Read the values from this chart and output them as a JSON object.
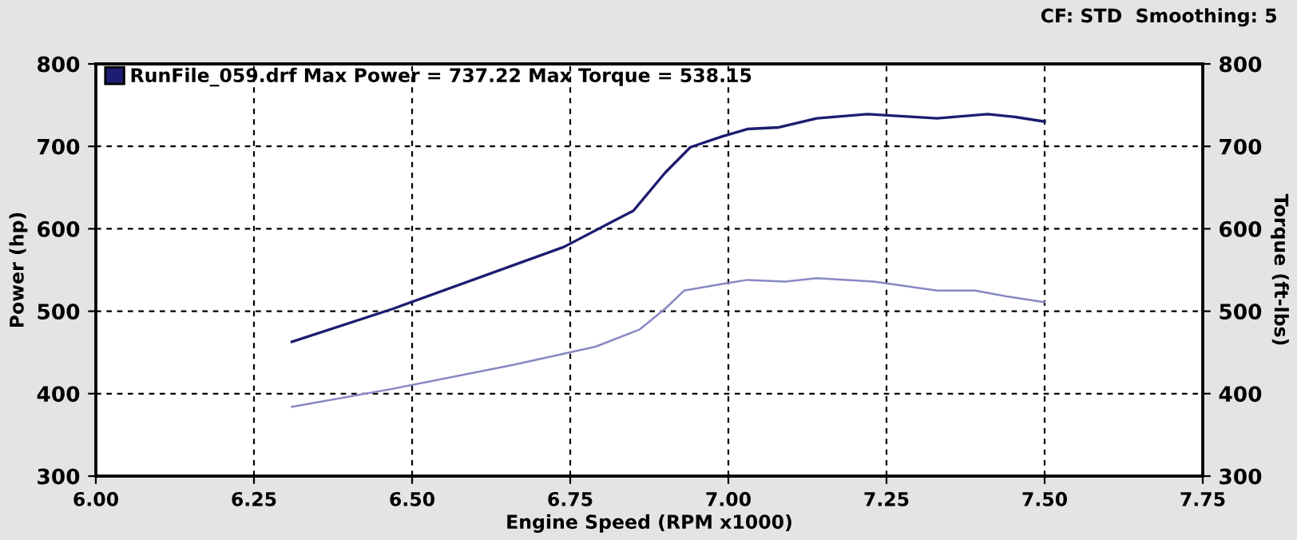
{
  "chart_data": {
    "type": "line",
    "xlabel": "Engine Speed (RPM x1000)",
    "ylabel": "Power (hp)",
    "y2label": "Torque (ft-lbs)",
    "annotations": [
      "CF: STD  Smoothing: 5"
    ],
    "series": [
      {
        "name": "RunFile_059.drf Max Power = 737.22 Max Torque = 538.15",
        "color": "#1c1c70",
        "x": [
          6.31,
          6.47,
          6.74,
          6.85,
          6.9,
          6.94,
          6.99,
          7.03,
          7.08,
          7.14,
          7.22,
          7.33,
          7.41,
          7.45,
          7.5
        ],
        "values": [
          463,
          503,
          578,
          622,
          668,
          699,
          712,
          721,
          723,
          734,
          739,
          734,
          739,
          736,
          730
        ]
      },
      {
        "color": "#8888c4",
        "axis": "y2",
        "x": [
          6.31,
          6.47,
          6.66,
          6.79,
          6.86,
          6.9,
          6.93,
          6.99,
          7.03,
          7.09,
          7.14,
          7.23,
          7.33,
          7.39,
          7.44,
          7.5
        ],
        "values": [
          384,
          406,
          435,
          457,
          478,
          503,
          525,
          533,
          538,
          536,
          540,
          536,
          525,
          525,
          518,
          511
        ]
      }
    ],
    "xlim": [
      6.0,
      7.75
    ],
    "xticks": [
      {
        "value": 6.0,
        "label": "6.00"
      },
      {
        "value": 6.25,
        "label": "6.25"
      },
      {
        "value": 6.5,
        "label": "6.50"
      },
      {
        "value": 6.75,
        "label": "6.75"
      },
      {
        "value": 7.0,
        "label": "7.00"
      },
      {
        "value": 7.25,
        "label": "7.25"
      },
      {
        "value": 7.5,
        "label": "7.50"
      },
      {
        "value": 7.75,
        "label": "7.75"
      }
    ],
    "ylim": [
      300,
      800
    ],
    "yticks": [
      300,
      400,
      500,
      600,
      700,
      800
    ],
    "y2lim": [
      300,
      800
    ],
    "y2ticks": [
      300,
      400,
      500,
      600,
      700,
      800
    ],
    "grid": true,
    "legend": "top left",
    "line_style": "solid",
    "marker": "none"
  }
}
